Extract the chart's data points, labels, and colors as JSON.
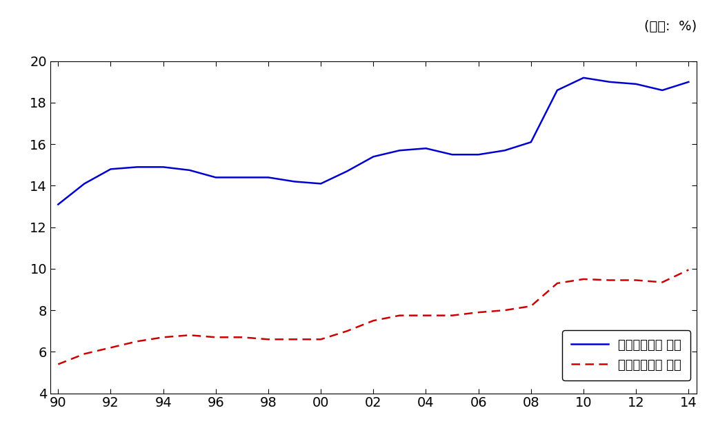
{
  "years": [
    1990,
    1991,
    1992,
    1993,
    1994,
    1995,
    1996,
    1997,
    1998,
    1999,
    2000,
    2001,
    2002,
    2003,
    2004,
    2005,
    2006,
    2007,
    2008,
    2009,
    2010,
    2011,
    2012,
    2013,
    2014
  ],
  "total": [
    13.1,
    14.1,
    14.8,
    14.9,
    14.9,
    14.75,
    14.4,
    14.4,
    14.4,
    14.2,
    14.1,
    14.7,
    15.4,
    15.7,
    15.8,
    15.5,
    15.5,
    15.7,
    16.1,
    18.6,
    19.2,
    19.0,
    18.9,
    18.6,
    19.0
  ],
  "inkind": [
    5.4,
    5.9,
    6.2,
    6.5,
    6.7,
    6.8,
    6.7,
    6.7,
    6.6,
    6.6,
    6.6,
    7.0,
    7.5,
    7.75,
    7.75,
    7.75,
    7.9,
    8.0,
    8.2,
    9.3,
    9.5,
    9.45,
    9.45,
    9.35,
    9.95
  ],
  "line1_color": "#0000cc",
  "line2_color": "#cc0000",
  "unit_label": "(단위:  %)",
  "legend1": "공공사회지출 전체",
  "legend2": "공공사회지출 현물",
  "xlim": [
    1990,
    2014
  ],
  "ylim": [
    4,
    20
  ],
  "yticks": [
    4,
    6,
    8,
    10,
    12,
    14,
    16,
    18,
    20
  ],
  "xtick_vals": [
    1990,
    1992,
    1994,
    1996,
    1998,
    2000,
    2002,
    2004,
    2006,
    2008,
    2010,
    2012,
    2014
  ],
  "xtick_labels": [
    "90",
    "92",
    "94",
    "96",
    "98",
    "00",
    "02",
    "04",
    "06",
    "08",
    "10",
    "12",
    "14"
  ],
  "background_color": "#ffffff",
  "tick_fontsize": 14,
  "legend_fontsize": 13,
  "unit_fontsize": 14
}
